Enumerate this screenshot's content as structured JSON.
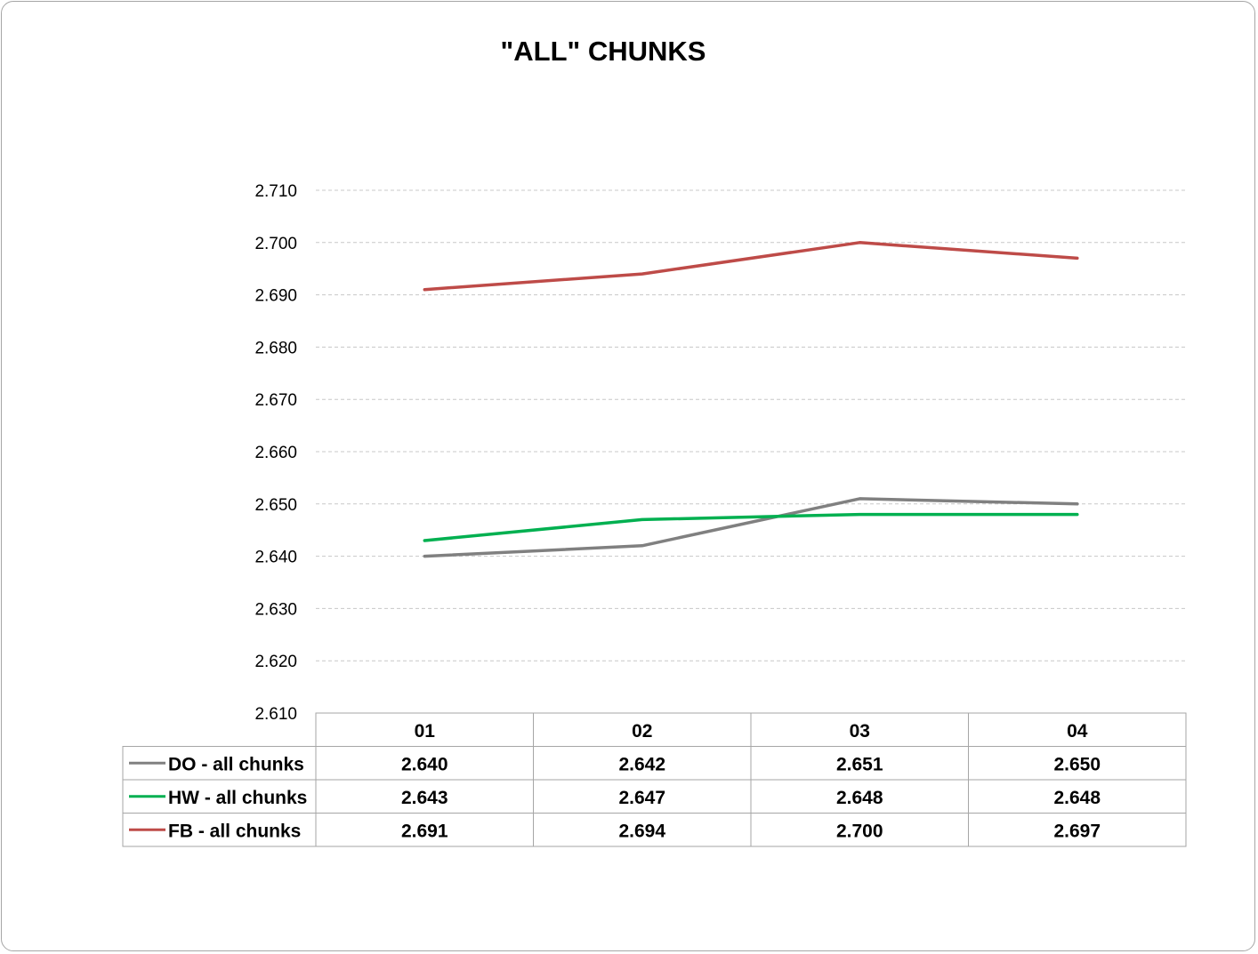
{
  "chart_data": {
    "type": "line",
    "title": "\"ALL\" CHUNKS",
    "categories": [
      "01",
      "02",
      "03",
      "04"
    ],
    "ylim": [
      2.61,
      2.71
    ],
    "yticks": [
      "2.710",
      "2.700",
      "2.690",
      "2.680",
      "2.670",
      "2.660",
      "2.650",
      "2.640",
      "2.630",
      "2.620",
      "2.610"
    ],
    "ytick_values": [
      2.71,
      2.7,
      2.69,
      2.68,
      2.67,
      2.66,
      2.65,
      2.64,
      2.63,
      2.62,
      2.61
    ],
    "grid": true,
    "legend_placement": "data-table",
    "series": [
      {
        "name": "DO - all chunks",
        "color": "#808080",
        "values": [
          2.64,
          2.642,
          2.651,
          2.65
        ],
        "labels": [
          "2.640",
          "2.642",
          "2.651",
          "2.650"
        ]
      },
      {
        "name": "HW - all chunks",
        "color": "#00b050",
        "values": [
          2.643,
          2.647,
          2.648,
          2.648
        ],
        "labels": [
          "2.643",
          "2.647",
          "2.648",
          "2.648"
        ]
      },
      {
        "name": "FB - all chunks",
        "color": "#be4b48",
        "values": [
          2.691,
          2.694,
          2.7,
          2.697
        ],
        "labels": [
          "2.691",
          "2.694",
          "2.700",
          "2.697"
        ]
      }
    ]
  }
}
